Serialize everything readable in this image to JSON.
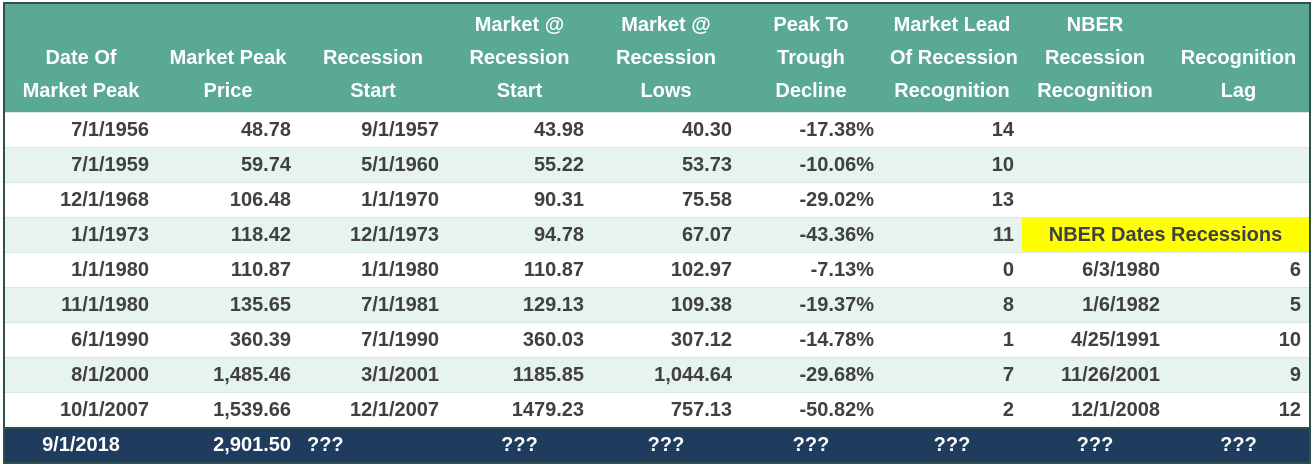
{
  "table": {
    "header": [
      [
        "Date Of",
        "Market Peak"
      ],
      [
        "Market Peak",
        "Price"
      ],
      [
        "Recession",
        "Start"
      ],
      [
        "Market @",
        "Recession",
        "Start"
      ],
      [
        "Market @",
        "Recession",
        "Lows"
      ],
      [
        "Peak To",
        "Trough",
        "Decline"
      ],
      [
        "Market Lead",
        "Of Recession",
        "Recognition"
      ],
      [
        "NBER",
        "Recession",
        "Recognition"
      ],
      [
        "Recognition",
        "Lag"
      ]
    ],
    "rows": [
      [
        "7/1/1956",
        "48.78",
        "9/1/1957",
        "43.98",
        "40.30",
        "-17.38%",
        "14"
      ],
      [
        "7/1/1959",
        "59.74",
        "5/1/1960",
        "55.22",
        "53.73",
        "-10.06%",
        "10"
      ],
      [
        "12/1/1968",
        "106.48",
        "1/1/1970",
        "90.31",
        "75.58",
        "-29.02%",
        "13"
      ],
      [
        "1/1/1973",
        "118.42",
        "12/1/1973",
        "94.78",
        "67.07",
        "-43.36%",
        "11"
      ],
      [
        "1/1/1980",
        "110.87",
        "1/1/1980",
        "110.87",
        "102.97",
        "-7.13%",
        "0",
        "6/3/1980",
        "6"
      ],
      [
        "11/1/1980",
        "135.65",
        "7/1/1981",
        "129.13",
        "109.38",
        "-19.37%",
        "8",
        "1/6/1982",
        "5"
      ],
      [
        "6/1/1990",
        "360.39",
        "7/1/1990",
        "360.03",
        "307.12",
        "-14.78%",
        "1",
        "4/25/1991",
        "10"
      ],
      [
        "8/1/2000",
        "1,485.46",
        "3/1/2001",
        "1185.85",
        "1,044.64",
        "-29.68%",
        "7",
        "11/26/2001",
        "9"
      ],
      [
        "10/1/2007",
        "1,539.66",
        "12/1/2007",
        "1479.23",
        "757.13",
        "-50.82%",
        "2",
        "12/1/2008",
        "12"
      ]
    ],
    "note": "NBER Dates Recessions",
    "footer": [
      "9/1/2018",
      "2,901.50",
      "???",
      "???",
      "???",
      "???",
      "???",
      "???",
      "???"
    ]
  }
}
